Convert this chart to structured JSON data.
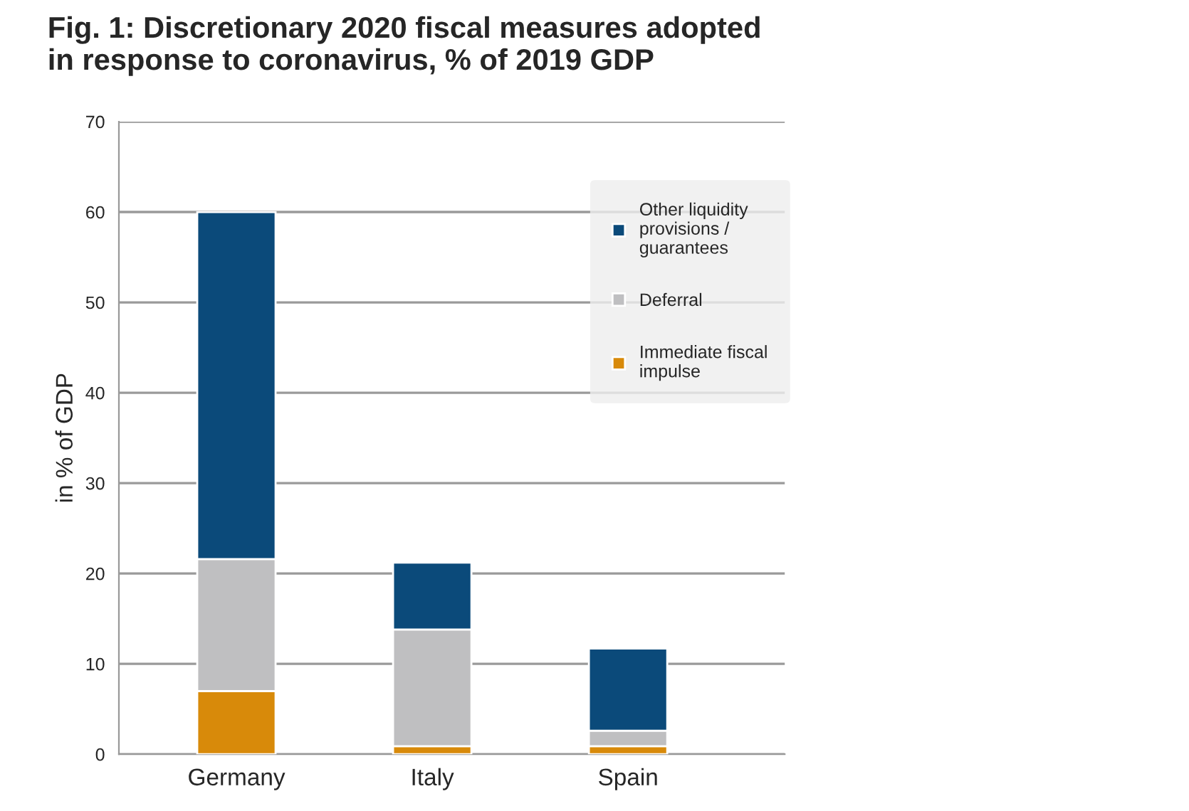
{
  "chart_data": {
    "type": "bar",
    "title": "Fig. 1: Discretionary 2020 fiscal measures adopted\nin response to coronavirus, % of 2019 GDP",
    "ylabel": "in % of GDP",
    "categories": [
      "Germany",
      "Italy",
      "Spain"
    ],
    "stacked": true,
    "series": [
      {
        "name": "Immediate fiscal\nimpulse",
        "color": "#d88a0a",
        "values": [
          7.0,
          0.9,
          0.9
        ]
      },
      {
        "name": "Deferral",
        "color": "#bfbfc1",
        "values": [
          14.6,
          12.9,
          1.7
        ]
      },
      {
        "name": "Other liquidity\nprovisions /\nguarantees",
        "color": "#0b4a7a",
        "values": [
          38.4,
          7.4,
          9.1
        ]
      }
    ],
    "ylim": [
      0,
      70
    ],
    "yticks": [
      0,
      10,
      20,
      30,
      40,
      50,
      60,
      70
    ],
    "grid": "y",
    "legend": "top right"
  }
}
